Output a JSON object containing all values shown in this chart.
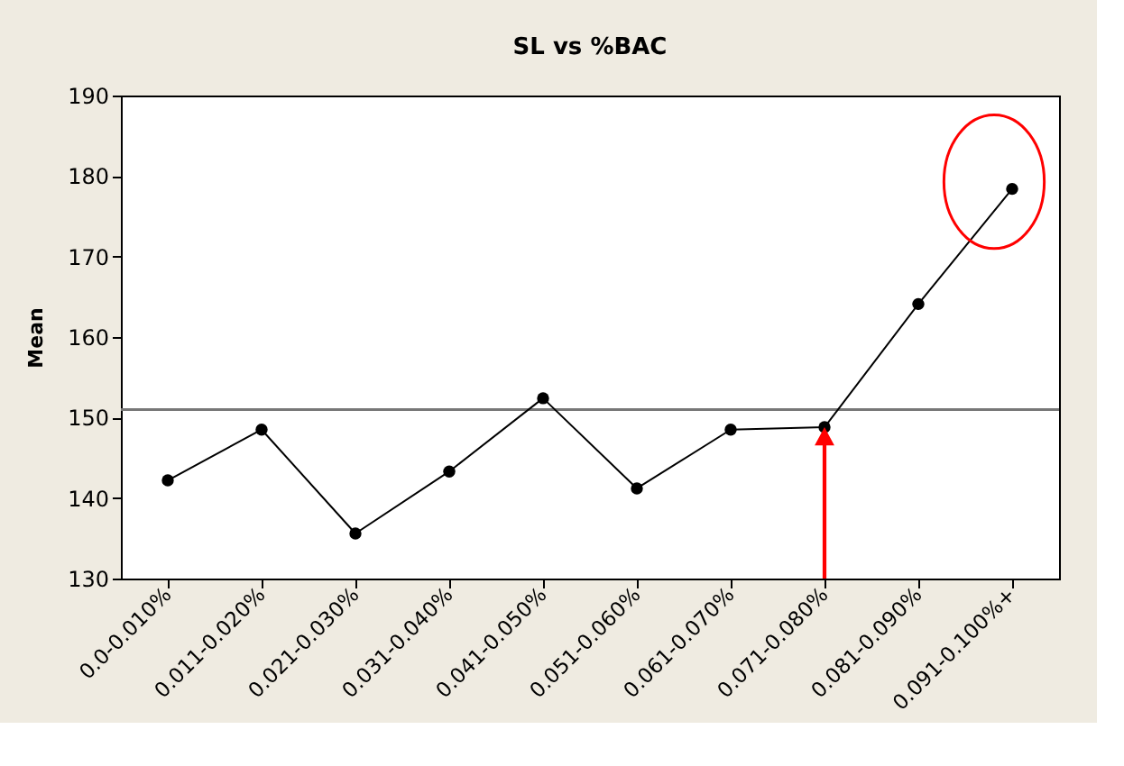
{
  "chart_data": {
    "type": "line",
    "title": "SL vs %BAC",
    "ylabel": "Mean",
    "categories": [
      "0.0-0.010%",
      "0.011-0.020%",
      "0.021-0.030%",
      "0.031-0.040%",
      "0.041-0.050%",
      "0.051-0.060%",
      "0.061-0.070%",
      "0.071-0.080%",
      "0.081-0.090%",
      "0.091-0.100%+"
    ],
    "series": [
      {
        "color": "#000000",
        "values": [
          142.2,
          148.5,
          135.6,
          143.3,
          152.4,
          141.2,
          148.5,
          148.8,
          164.1,
          178.4
        ]
      }
    ],
    "ylim": [
      130,
      190
    ],
    "yticks": [
      130,
      140,
      150,
      160,
      170,
      180,
      190
    ],
    "ref_lines": [
      {
        "axis": "y",
        "value": 151,
        "color": "#777777"
      }
    ],
    "marker": "circle",
    "line_style": "solid",
    "grid": false
  }
}
